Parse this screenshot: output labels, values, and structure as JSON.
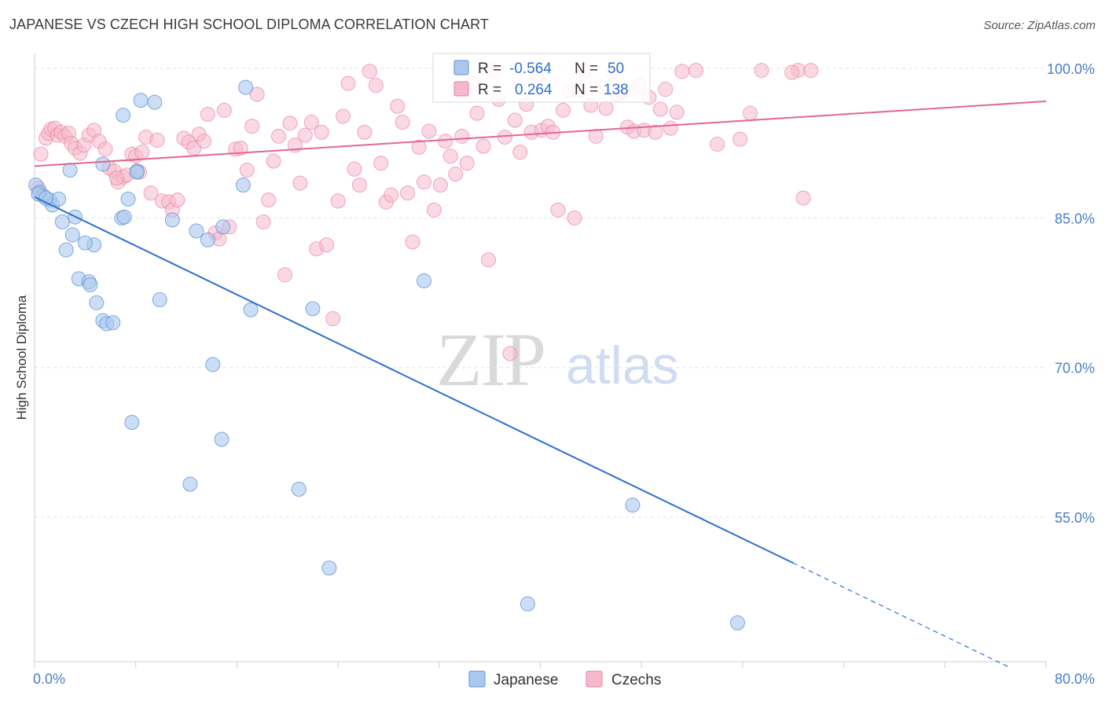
{
  "header": {
    "title": "JAPANESE VS CZECH HIGH SCHOOL DIPLOMA CORRELATION CHART",
    "source": "Source: ZipAtlas.com"
  },
  "legend_box": {
    "rows": [
      {
        "r_label": "R = ",
        "r_value": "-0.564",
        "n_label": "N = ",
        "n_value": "50"
      },
      {
        "r_label": "R = ",
        "r_value": "0.264",
        "n_label": "N = ",
        "n_value": "138"
      }
    ]
  },
  "bottom_legend": [
    "Japanese",
    "Czechs"
  ],
  "watermark": {
    "zip": "ZIP",
    "atlas": "atlas"
  },
  "colors": {
    "japanese_fill": "#aac8ee",
    "japanese_stroke": "#5b8fd6",
    "japanese_line": "#2e6fd1",
    "czech_fill": "#f6b9cc",
    "czech_stroke": "#e9839f",
    "czech_line": "#e4668f",
    "axis_label": "#4a7cc9",
    "grid": "#e2e2e2"
  },
  "chart_data": {
    "type": "scatter",
    "title": "JAPANESE VS CZECH HIGH SCHOOL DIPLOMA CORRELATION CHART",
    "xlabel": "",
    "ylabel": "High School Diploma",
    "xlim": [
      0,
      80
    ],
    "ylim": [
      40.5,
      101.5
    ],
    "x_tick_labels": [
      "0.0%",
      "80.0%"
    ],
    "y_ticks": [
      100,
      85,
      70,
      55
    ],
    "y_tick_labels": [
      "100.0%",
      "85.0%",
      "70.0%",
      "55.0%"
    ],
    "grid": true,
    "legend_position": "top-center",
    "series": [
      {
        "name": "Japanese",
        "r": -0.564,
        "n": 50,
        "trend": {
          "x": [
            0,
            60,
            77
          ],
          "y": [
            87.1,
            50.4,
            40.0
          ],
          "dashed_from_x": 60
        },
        "points": [
          [
            0.1,
            88.3
          ],
          [
            0.4,
            87.6
          ],
          [
            0.7,
            87.2
          ],
          [
            1.2,
            86.8
          ],
          [
            1.4,
            86.3
          ],
          [
            1.9,
            86.9
          ],
          [
            2.8,
            89.8
          ],
          [
            3.2,
            85.1
          ],
          [
            2.2,
            84.6
          ],
          [
            3.0,
            83.3
          ],
          [
            4.7,
            82.3
          ],
          [
            4.0,
            82.5
          ],
          [
            2.5,
            81.8
          ],
          [
            3.5,
            78.9
          ],
          [
            4.3,
            78.6
          ],
          [
            4.4,
            78.3
          ],
          [
            4.9,
            76.5
          ],
          [
            5.4,
            74.7
          ],
          [
            5.7,
            74.4
          ],
          [
            6.2,
            74.5
          ],
          [
            6.9,
            85.0
          ],
          [
            7.1,
            85.1
          ],
          [
            7.4,
            86.9
          ],
          [
            5.4,
            90.4
          ],
          [
            8.1,
            89.7
          ],
          [
            8.1,
            89.6
          ],
          [
            7.0,
            95.3
          ],
          [
            8.4,
            96.8
          ],
          [
            9.5,
            96.6
          ],
          [
            9.9,
            76.8
          ],
          [
            10.9,
            84.8
          ],
          [
            12.8,
            83.7
          ],
          [
            13.7,
            82.8
          ],
          [
            14.1,
            70.3
          ],
          [
            14.9,
            84.1
          ],
          [
            16.5,
            88.3
          ],
          [
            16.7,
            98.1
          ],
          [
            17.1,
            75.8
          ],
          [
            22.0,
            75.9
          ],
          [
            7.7,
            64.5
          ],
          [
            12.3,
            58.3
          ],
          [
            14.8,
            62.8
          ],
          [
            20.9,
            57.8
          ],
          [
            23.3,
            49.9
          ],
          [
            30.8,
            78.7
          ],
          [
            39.0,
            46.3
          ],
          [
            47.3,
            56.2
          ],
          [
            55.6,
            44.4
          ],
          [
            0.3,
            87.4
          ],
          [
            0.9,
            87.0
          ]
        ]
      },
      {
        "name": "Czechs",
        "r": 0.264,
        "n": 138,
        "trend": {
          "x": [
            0,
            80
          ],
          "y": [
            90.2,
            96.7
          ]
        },
        "points": [
          [
            0.3,
            88.0
          ],
          [
            0.5,
            91.4
          ],
          [
            0.9,
            93.0
          ],
          [
            1.1,
            93.5
          ],
          [
            1.3,
            93.9
          ],
          [
            1.6,
            94.0
          ],
          [
            1.8,
            93.3
          ],
          [
            2.1,
            93.6
          ],
          [
            2.4,
            93.2
          ],
          [
            2.7,
            93.5
          ],
          [
            2.9,
            92.5
          ],
          [
            3.2,
            92.0
          ],
          [
            3.6,
            91.5
          ],
          [
            3.9,
            92.3
          ],
          [
            4.3,
            93.3
          ],
          [
            4.7,
            93.8
          ],
          [
            5.1,
            92.7
          ],
          [
            5.6,
            91.9
          ],
          [
            5.9,
            90.0
          ],
          [
            6.3,
            89.7
          ],
          [
            6.6,
            88.6
          ],
          [
            7.0,
            89.1
          ],
          [
            7.3,
            89.3
          ],
          [
            7.7,
            91.4
          ],
          [
            8.0,
            91.2
          ],
          [
            8.5,
            91.6
          ],
          [
            8.8,
            93.1
          ],
          [
            9.2,
            87.5
          ],
          [
            9.7,
            92.8
          ],
          [
            10.1,
            86.7
          ],
          [
            10.6,
            86.6
          ],
          [
            10.9,
            85.8
          ],
          [
            11.3,
            86.8
          ],
          [
            11.8,
            93.0
          ],
          [
            12.2,
            92.6
          ],
          [
            12.6,
            92.0
          ],
          [
            13.0,
            93.4
          ],
          [
            13.4,
            92.7
          ],
          [
            13.7,
            95.4
          ],
          [
            14.3,
            83.5
          ],
          [
            14.6,
            82.9
          ],
          [
            15.0,
            95.8
          ],
          [
            15.4,
            84.1
          ],
          [
            15.9,
            91.9
          ],
          [
            16.3,
            92.0
          ],
          [
            16.8,
            89.8
          ],
          [
            17.2,
            94.2
          ],
          [
            17.6,
            97.4
          ],
          [
            18.1,
            84.6
          ],
          [
            18.5,
            86.8
          ],
          [
            18.9,
            90.7
          ],
          [
            19.3,
            93.2
          ],
          [
            19.8,
            79.3
          ],
          [
            20.2,
            94.5
          ],
          [
            20.6,
            92.3
          ],
          [
            21.0,
            88.5
          ],
          [
            21.4,
            93.3
          ],
          [
            21.9,
            94.6
          ],
          [
            22.3,
            81.9
          ],
          [
            22.7,
            93.6
          ],
          [
            23.1,
            82.3
          ],
          [
            23.6,
            74.9
          ],
          [
            24.0,
            86.7
          ],
          [
            24.4,
            95.2
          ],
          [
            24.8,
            98.5
          ],
          [
            25.3,
            89.9
          ],
          [
            25.7,
            88.3
          ],
          [
            26.1,
            93.6
          ],
          [
            26.5,
            99.7
          ],
          [
            27.0,
            98.3
          ],
          [
            27.4,
            90.5
          ],
          [
            27.8,
            86.6
          ],
          [
            28.2,
            87.3
          ],
          [
            28.7,
            96.2
          ],
          [
            29.1,
            94.6
          ],
          [
            29.5,
            87.5
          ],
          [
            29.9,
            82.6
          ],
          [
            30.4,
            92.1
          ],
          [
            30.8,
            88.6
          ],
          [
            31.2,
            93.7
          ],
          [
            31.6,
            85.8
          ],
          [
            32.1,
            88.3
          ],
          [
            32.5,
            92.7
          ],
          [
            32.9,
            91.2
          ],
          [
            33.3,
            89.4
          ],
          [
            33.8,
            93.2
          ],
          [
            34.2,
            90.5
          ],
          [
            34.6,
            98.6
          ],
          [
            35.0,
            95.5
          ],
          [
            35.5,
            92.2
          ],
          [
            35.9,
            80.8
          ],
          [
            36.3,
            99.8
          ],
          [
            36.7,
            96.9
          ],
          [
            37.2,
            93.1
          ],
          [
            37.6,
            71.4
          ],
          [
            38.0,
            94.8
          ],
          [
            38.4,
            91.6
          ],
          [
            38.9,
            96.4
          ],
          [
            39.3,
            93.6
          ],
          [
            39.7,
            99.1
          ],
          [
            40.1,
            93.8
          ],
          [
            40.6,
            94.2
          ],
          [
            41.0,
            93.6
          ],
          [
            41.4,
            85.8
          ],
          [
            41.8,
            95.8
          ],
          [
            42.3,
            97.7
          ],
          [
            42.7,
            85.0
          ],
          [
            43.1,
            97.8
          ],
          [
            43.5,
            99.8
          ],
          [
            44.0,
            96.3
          ],
          [
            44.4,
            93.2
          ],
          [
            44.8,
            98.2
          ],
          [
            45.2,
            96.0
          ],
          [
            45.7,
            99.7
          ],
          [
            46.1,
            97.4
          ],
          [
            46.5,
            97.6
          ],
          [
            46.9,
            94.1
          ],
          [
            47.4,
            93.7
          ],
          [
            47.8,
            98.3
          ],
          [
            48.2,
            93.8
          ],
          [
            48.6,
            97.1
          ],
          [
            49.1,
            93.6
          ],
          [
            49.5,
            95.9
          ],
          [
            49.9,
            97.9
          ],
          [
            50.3,
            94.0
          ],
          [
            50.8,
            95.6
          ],
          [
            51.2,
            99.7
          ],
          [
            52.3,
            99.8
          ],
          [
            54.0,
            92.4
          ],
          [
            55.8,
            92.9
          ],
          [
            56.6,
            95.5
          ],
          [
            57.5,
            99.8
          ],
          [
            60.4,
            99.8
          ],
          [
            61.4,
            99.8
          ],
          [
            60.8,
            87.0
          ],
          [
            59.9,
            99.6
          ],
          [
            8.3,
            89.6
          ],
          [
            6.5,
            89.0
          ]
        ]
      }
    ]
  }
}
